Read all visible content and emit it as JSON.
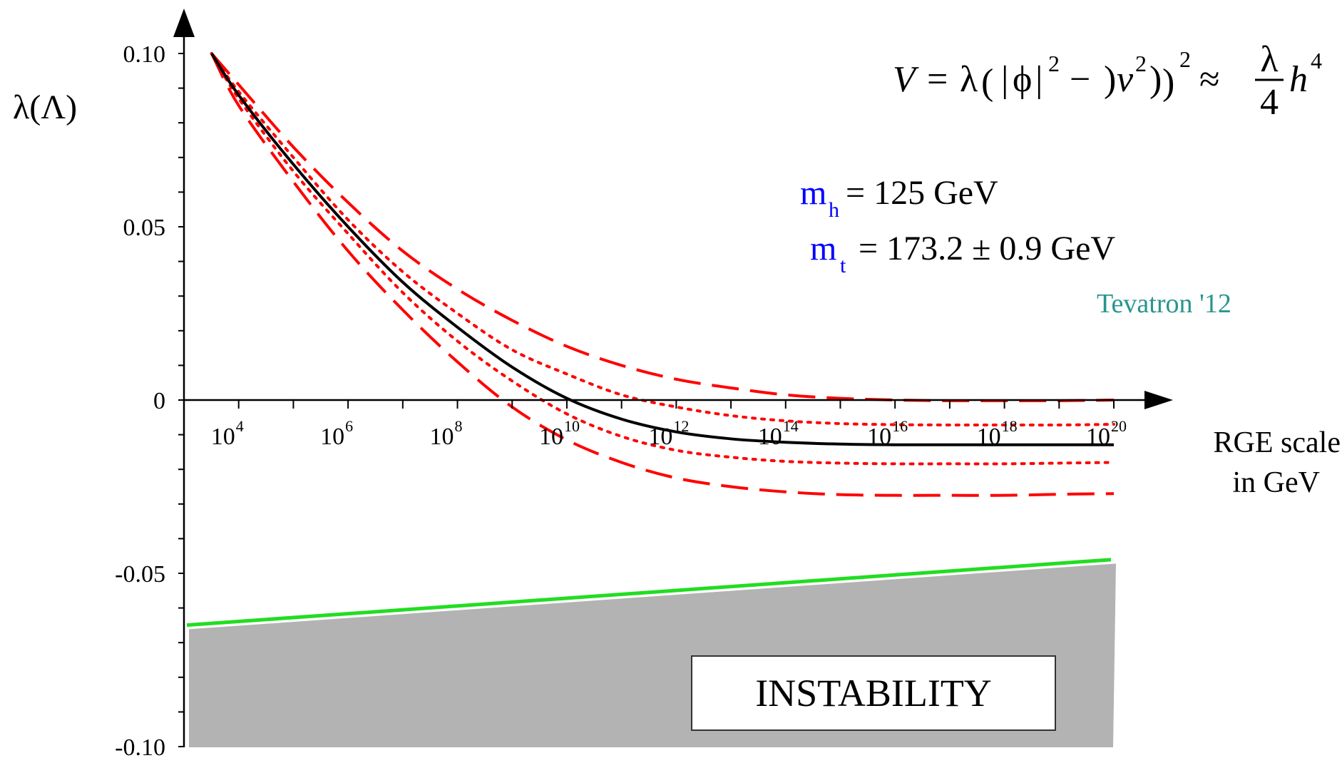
{
  "chart_data": {
    "type": "line",
    "xscale": "log",
    "xlim": [
      1000,
      100000000000000000000
    ],
    "ylim": [
      -0.1,
      0.1
    ],
    "ylabel": "λ(Λ)",
    "xlabel_lines": [
      "RGE scale",
      "in GeV"
    ],
    "yticks": [
      {
        "value": 0.1,
        "label": "0.10"
      },
      {
        "value": 0.05,
        "label": "0.05"
      },
      {
        "value": 0,
        "label": "0"
      },
      {
        "value": -0.05,
        "label": "-0.05"
      },
      {
        "value": -0.1,
        "label": "-0.10"
      }
    ],
    "xticks": [
      {
        "value": 10000,
        "base": "10",
        "exp": "4"
      },
      {
        "value": 1000000,
        "base": "10",
        "exp": "6"
      },
      {
        "value": 100000000,
        "base": "10",
        "exp": "8"
      },
      {
        "value": 10000000000,
        "base": "10",
        "exp": "10"
      },
      {
        "value": 1000000000000,
        "base": "10",
        "exp": "12"
      },
      {
        "value": 100000000000000,
        "base": "10",
        "exp": "14"
      },
      {
        "value": 10000000000000000,
        "base": "10",
        "exp": "16"
      },
      {
        "value": 1000000000000000000,
        "base": "10",
        "exp": "18"
      },
      {
        "value": 100000000000000000000,
        "base": "10",
        "exp": "20"
      }
    ],
    "x": [
      3200.0,
      10000.0,
      100000.0,
      1000000.0,
      10000000.0,
      100000000.0,
      1000000000.0,
      10000000000.0,
      100000000000.0,
      1000000000000.0,
      10000000000000.0,
      100000000000000.0,
      1000000000000000.0,
      1e+16,
      1e+17,
      1e+18,
      1e+19,
      1e+20
    ],
    "series": [
      {
        "style": "solid",
        "color": "#000000",
        "values": [
          0.1,
          0.088,
          0.068,
          0.05,
          0.034,
          0.021,
          0.0095,
          0.0005,
          -0.0055,
          -0.0092,
          -0.0112,
          -0.0122,
          -0.0127,
          -0.0129,
          -0.0129,
          -0.0129,
          -0.0129,
          -0.0129
        ]
      },
      {
        "style": "dotted",
        "color": "#ff0000",
        "values": [
          0.1,
          0.089,
          0.07,
          0.052,
          0.037,
          0.025,
          0.0145,
          0.0075,
          0.0015,
          -0.002,
          -0.0045,
          -0.006,
          -0.0068,
          -0.0071,
          -0.0072,
          -0.0072,
          -0.0072,
          -0.007
        ]
      },
      {
        "style": "dotted",
        "color": "#ff0000",
        "values": [
          0.1,
          0.087,
          0.066,
          0.048,
          0.031,
          0.017,
          0.0055,
          -0.004,
          -0.0105,
          -0.0145,
          -0.0165,
          -0.0177,
          -0.0182,
          -0.0184,
          -0.0184,
          -0.0184,
          -0.0182,
          -0.018
        ]
      },
      {
        "style": "dashed",
        "color": "#ff0000",
        "values": [
          0.1,
          0.091,
          0.073,
          0.057,
          0.043,
          0.032,
          0.023,
          0.0155,
          0.01,
          0.006,
          0.0035,
          0.0015,
          0.0005,
          0.0,
          -0.0002,
          -0.0002,
          -0.0002,
          0.0
        ]
      },
      {
        "style": "dashed",
        "color": "#ff0000",
        "values": [
          0.1,
          0.085,
          0.063,
          0.043,
          0.026,
          0.011,
          -0.002,
          -0.0115,
          -0.018,
          -0.0225,
          -0.025,
          -0.0265,
          -0.0273,
          -0.0275,
          -0.0275,
          -0.0275,
          -0.0272,
          -0.027
        ]
      }
    ],
    "stability_bound": {
      "color": "#22dd22",
      "x": [
        1000,
        1e+20
      ],
      "values": [
        -0.065,
        -0.046
      ]
    },
    "instability_region": {
      "color": "#b3b3b3",
      "label": "INSTABILITY"
    },
    "formula": {
      "lhs": "V",
      "eq": "=",
      "lambda": "λ",
      "open_big": "(",
      "abs_open": "|",
      "phi": "ϕ",
      "abs_close": "|",
      "sup2": "2",
      "minus": "−",
      "nu": "v",
      "close_small": ")",
      "close_big": ")",
      "approx": "≈",
      "frac_num": "λ",
      "frac_den": "4",
      "h": "h",
      "sup4": "4"
    },
    "annotations": {
      "mh_symbol": "m",
      "mh_sub": "h",
      "mh_value": "= 125 GeV",
      "mt_symbol": "m",
      "mt_sub": "t",
      "mt_value": "= 173.2 ± 0.9 GeV",
      "source": "Tevatron '12"
    }
  }
}
